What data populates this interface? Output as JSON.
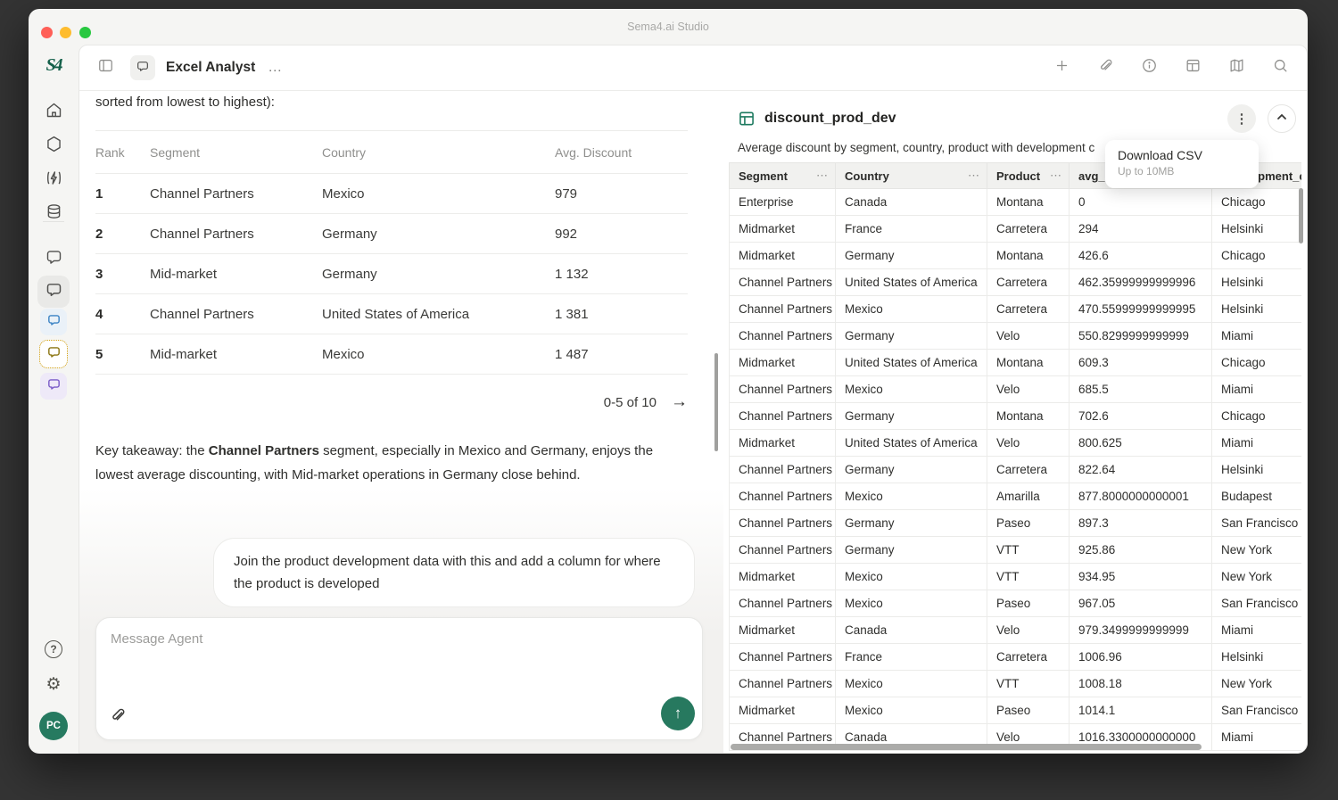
{
  "colors": {
    "accent_green": "#27795f",
    "brand_green": "#14604a",
    "traffic_red": "#ff5f57",
    "traffic_yellow": "#febc2e",
    "traffic_green": "#28c840",
    "chat_icon_blue": "#3b82c4",
    "chat_icon_yellow": "#d8a514",
    "chat_icon_purple": "#7a5bc7"
  },
  "titlebar": {
    "title": "Sema4.ai Studio"
  },
  "toolbar": {
    "agent_name": "Excel Analyst"
  },
  "icons": {
    "overflow": "…",
    "kebab": "⋮",
    "column_menu": "⋯",
    "arrow_right": "→",
    "arrow_up": "↑",
    "help": "?",
    "gear": "⚙"
  },
  "sidebar": {
    "logo_text": "S4",
    "avatar_initials": "PC"
  },
  "chat": {
    "intro_text": "sorted from lowest to highest):",
    "table": {
      "columns": [
        "Rank",
        "Segment",
        "Country",
        "Avg. Discount"
      ],
      "rows": [
        [
          "1",
          "Channel Partners",
          "Mexico",
          "979"
        ],
        [
          "2",
          "Channel Partners",
          "Germany",
          "992"
        ],
        [
          "3",
          "Mid-market",
          "Germany",
          "1 132"
        ],
        [
          "4",
          "Channel Partners",
          "United States of America",
          "1 381"
        ],
        [
          "5",
          "Mid-market",
          "Mexico",
          "1 487"
        ]
      ]
    },
    "pagination_label": "0-5 of 10",
    "takeaway": {
      "prefix": "Key takeaway: the ",
      "bold": "Channel Partners",
      "suffix": " segment, especially in Mexico and Germany, enjoys the lowest average discounting, with Mid-market operations in Germany close behind."
    },
    "user_message": "Join the product development data with this and add a column for where the product is developed",
    "input_placeholder": "Message Agent"
  },
  "data_panel": {
    "title": "discount_prod_dev",
    "description": "Average discount by segment, country, product with development c",
    "tooltip": {
      "title": "Download CSV",
      "subtitle": "Up to 10MB"
    },
    "table": {
      "columns": [
        "Segment",
        "Country",
        "Product",
        "avg_discount",
        "development_city"
      ],
      "rows": [
        [
          "Enterprise",
          "Canada",
          "Montana",
          "0",
          "Chicago"
        ],
        [
          "Midmarket",
          "France",
          "Carretera",
          "294",
          "Helsinki"
        ],
        [
          "Midmarket",
          "Germany",
          "Montana",
          "426.6",
          "Chicago"
        ],
        [
          "Channel Partners",
          "United States of America",
          "Carretera",
          "462.35999999999996",
          "Helsinki"
        ],
        [
          "Channel Partners",
          "Mexico",
          "Carretera",
          "470.55999999999995",
          "Helsinki"
        ],
        [
          "Channel Partners",
          "Germany",
          "Velo",
          "550.8299999999999",
          "Miami"
        ],
        [
          "Midmarket",
          "United States of America",
          "Montana",
          "609.3",
          "Chicago"
        ],
        [
          "Channel Partners",
          "Mexico",
          "Velo",
          "685.5",
          "Miami"
        ],
        [
          "Channel Partners",
          "Germany",
          "Montana",
          "702.6",
          "Chicago"
        ],
        [
          "Midmarket",
          "United States of America",
          "Velo",
          "800.625",
          "Miami"
        ],
        [
          "Channel Partners",
          "Germany",
          "Carretera",
          "822.64",
          "Helsinki"
        ],
        [
          "Channel Partners",
          "Mexico",
          "Amarilla",
          "877.8000000000001",
          "Budapest"
        ],
        [
          "Channel Partners",
          "Germany",
          "Paseo",
          "897.3",
          "San Francisco"
        ],
        [
          "Channel Partners",
          "Germany",
          "VTT",
          "925.86",
          "New York"
        ],
        [
          "Midmarket",
          "Mexico",
          "VTT",
          "934.95",
          "New York"
        ],
        [
          "Channel Partners",
          "Mexico",
          "Paseo",
          "967.05",
          "San Francisco"
        ],
        [
          "Midmarket",
          "Canada",
          "Velo",
          "979.3499999999999",
          "Miami"
        ],
        [
          "Channel Partners",
          "France",
          "Carretera",
          "1006.96",
          "Helsinki"
        ],
        [
          "Channel Partners",
          "Mexico",
          "VTT",
          "1008.18",
          "New York"
        ],
        [
          "Midmarket",
          "Mexico",
          "Paseo",
          "1014.1",
          "San Francisco"
        ],
        [
          "Channel Partners",
          "Canada",
          "Velo",
          "1016.3300000000000",
          "Miami"
        ]
      ]
    }
  }
}
